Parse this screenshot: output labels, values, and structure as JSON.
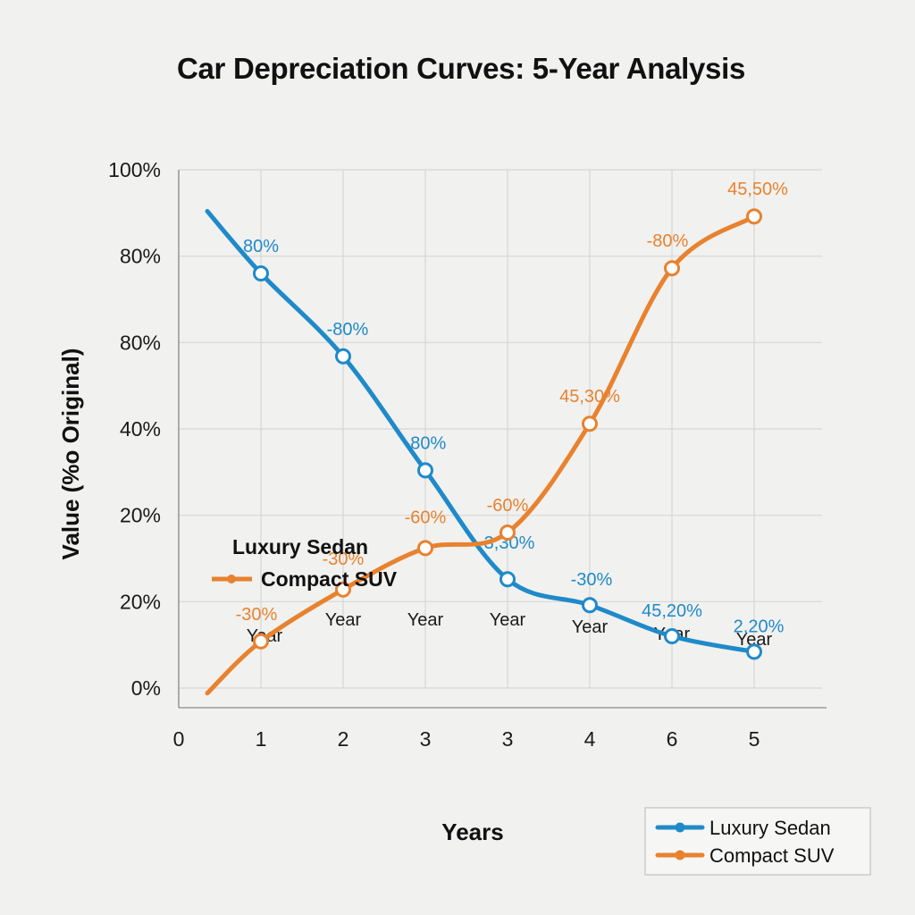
{
  "chart_data": {
    "type": "line",
    "title": "Car Depreciation Curves: 5-Year Analysis",
    "xlabel": "Years",
    "ylabel": "Value  (%o Original)",
    "x_tick_labels": [
      "0",
      "1",
      "2",
      "3",
      "3",
      "4",
      "6",
      "5"
    ],
    "x_sub_labels": [
      "Year",
      "Year",
      "Year",
      "Year",
      "Year",
      "Year",
      "Year"
    ],
    "y_tick_labels": [
      "100%",
      "80%",
      "80%",
      "40%",
      "20%",
      "20%",
      "0%"
    ],
    "ylim": [
      0,
      100
    ],
    "grid": true,
    "legend_position": "bottom-right",
    "series": [
      {
        "name": "Luxury Sedan",
        "color": "#1f8ac9",
        "start_value": 92,
        "x": [
          1,
          2,
          3,
          4,
          5,
          6,
          7
        ],
        "values": [
          80,
          64,
          42,
          21,
          16,
          10,
          7
        ],
        "point_labels": [
          "80%",
          "-80%",
          "-80%",
          "3,30%",
          "-30%",
          "45,20%",
          "2,20%"
        ]
      },
      {
        "name": "Compact SUV",
        "color": "#e8822e",
        "start_value": -1,
        "x": [
          1,
          2,
          3,
          4,
          5,
          6,
          7
        ],
        "values": [
          9,
          19,
          27,
          30,
          51,
          81,
          91
        ],
        "point_labels": [
          "-30%",
          "-30%",
          "-60%",
          "-60%",
          "45,30%",
          "-80%",
          "45,50%"
        ]
      }
    ]
  }
}
